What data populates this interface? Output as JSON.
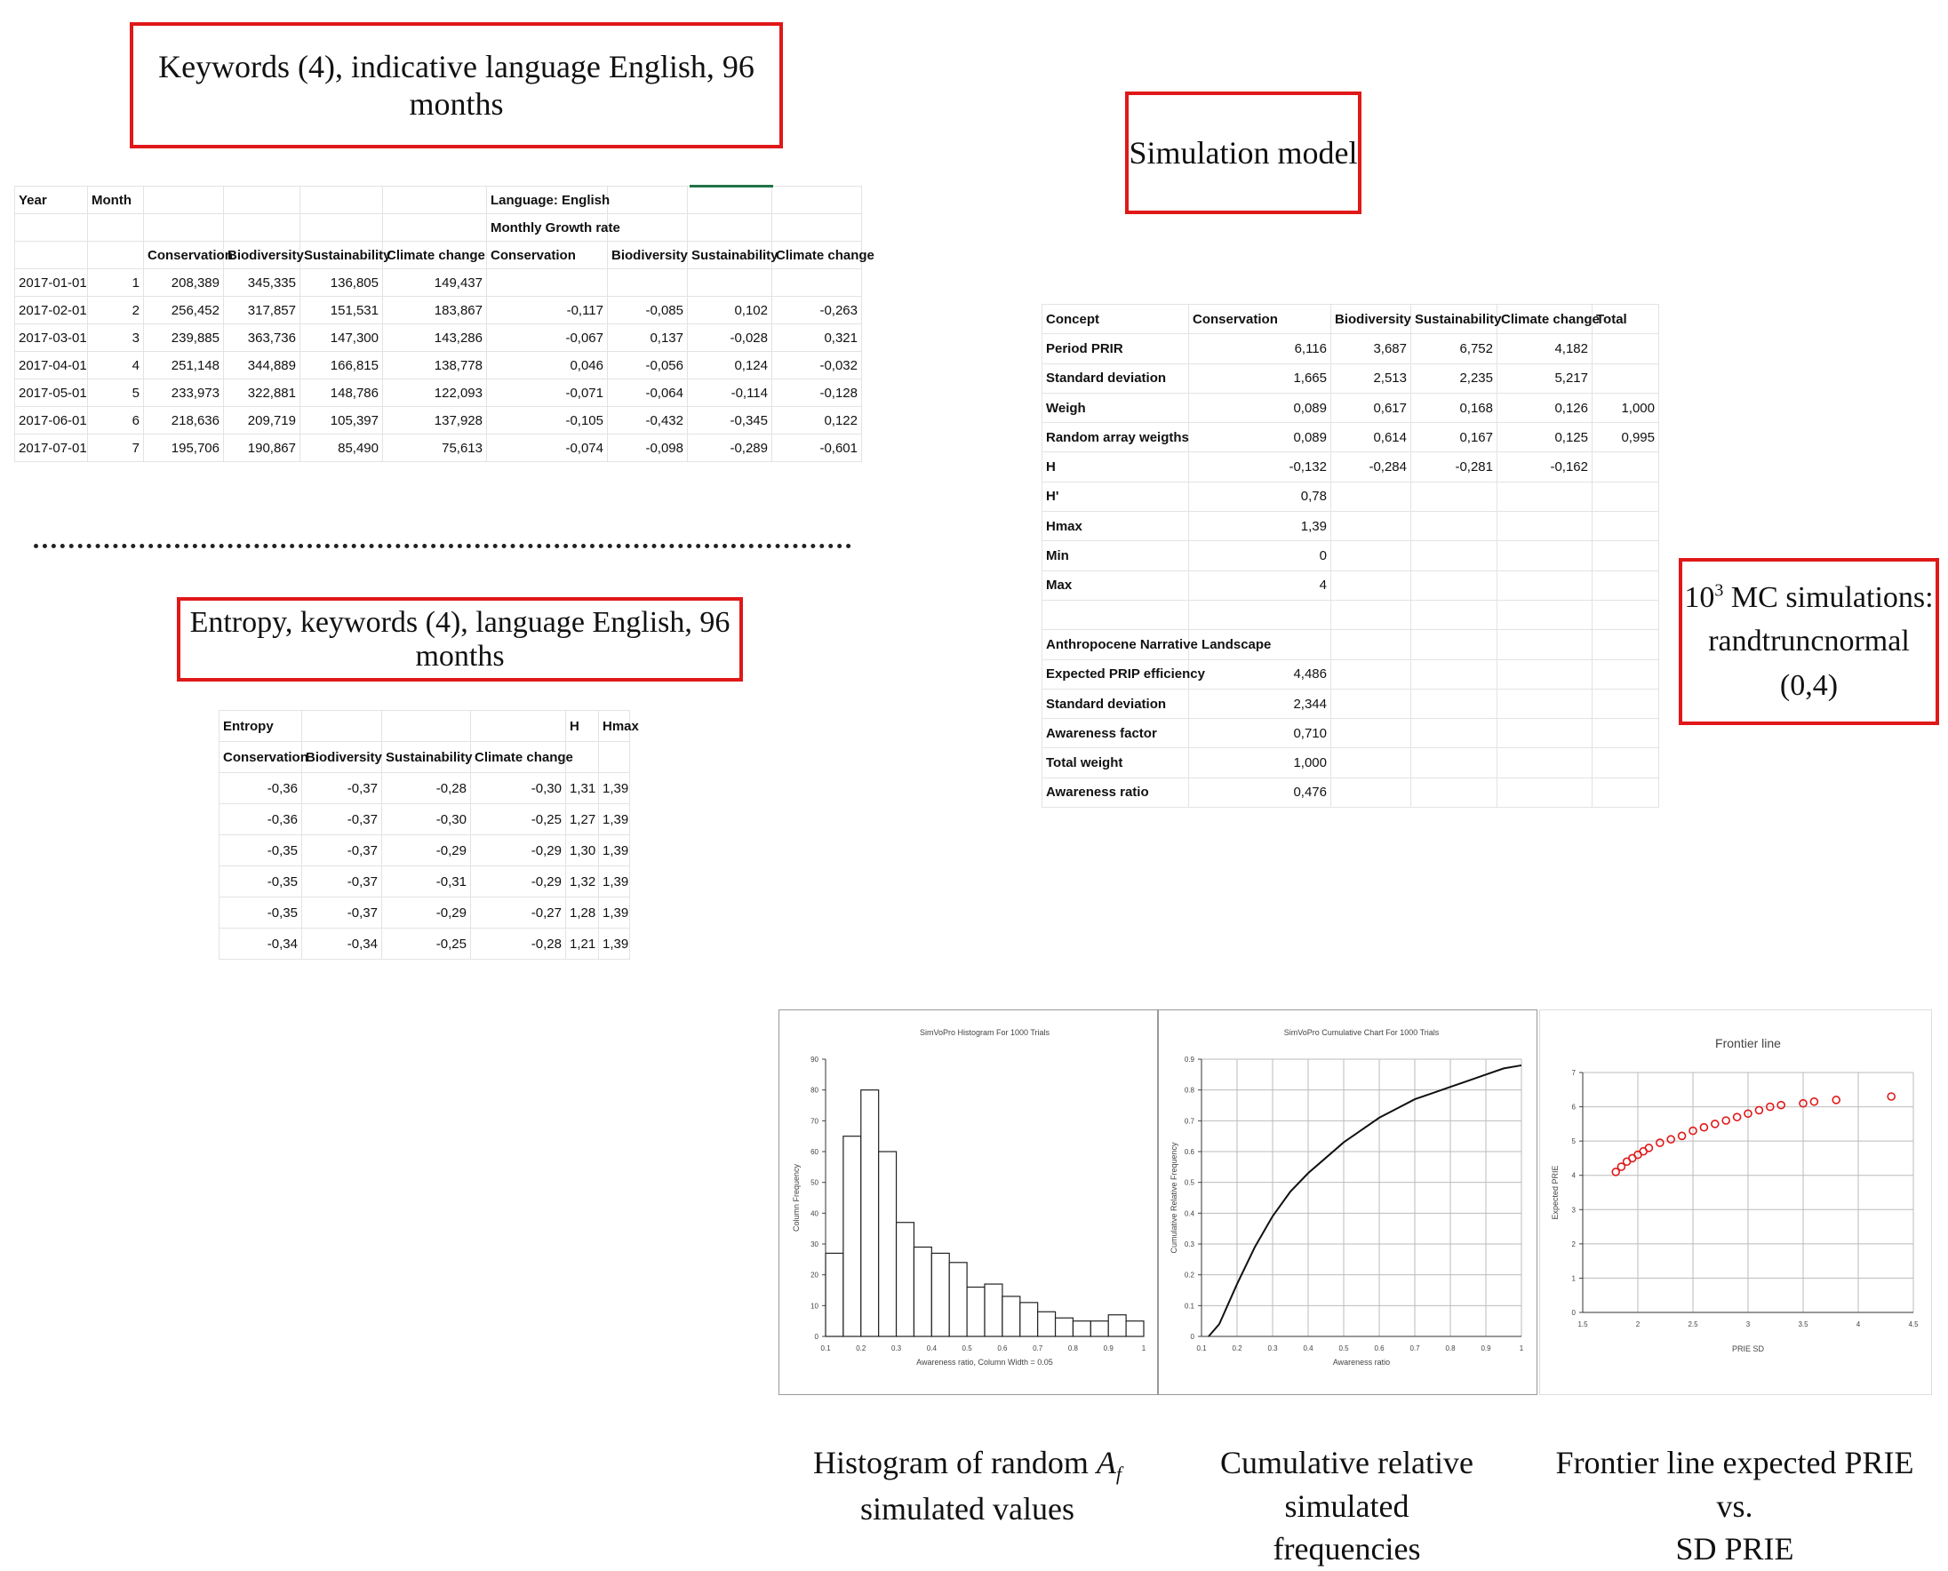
{
  "boxes": {
    "keywords": "Keywords (4), indicative language English, 96 months",
    "simulation": "Simulation model",
    "entropy": "Entropy, keywords (4), language English, 96 months",
    "mc_base": "10",
    "mc_exp": "3",
    "mc_line1": " MC simulations:",
    "mc_line2": "randtruncnormal (0,4)"
  },
  "growth_table": {
    "header1": [
      "Year",
      "Month",
      "",
      "",
      "",
      "",
      "Language: English",
      "",
      "",
      ""
    ],
    "header2": [
      "",
      "",
      "",
      "",
      "",
      "",
      "Monthly Growth rate",
      "",
      "",
      ""
    ],
    "header3": [
      "",
      "",
      "Conservation",
      "Biodiversity",
      "Sustainability",
      "Climate change",
      "Conservation",
      "Biodiversity",
      "Sustainability",
      "Climate change"
    ],
    "rows": [
      [
        "2017-01-01",
        "1",
        "208,389",
        "345,335",
        "136,805",
        "149,437",
        "",
        "",
        "",
        ""
      ],
      [
        "2017-02-01",
        "2",
        "256,452",
        "317,857",
        "151,531",
        "183,867",
        "-0,117",
        "-0,085",
        "0,102",
        "-0,263"
      ],
      [
        "2017-03-01",
        "3",
        "239,885",
        "363,736",
        "147,300",
        "143,286",
        "-0,067",
        "0,137",
        "-0,028",
        "0,321"
      ],
      [
        "2017-04-01",
        "4",
        "251,148",
        "344,889",
        "166,815",
        "138,778",
        "0,046",
        "-0,056",
        "0,124",
        "-0,032"
      ],
      [
        "2017-05-01",
        "5",
        "233,973",
        "322,881",
        "148,786",
        "122,093",
        "-0,071",
        "-0,064",
        "-0,114",
        "-0,128"
      ],
      [
        "2017-06-01",
        "6",
        "218,636",
        "209,719",
        "105,397",
        "137,928",
        "-0,105",
        "-0,432",
        "-0,345",
        "0,122"
      ],
      [
        "2017-07-01",
        "7",
        "195,706",
        "190,867",
        "85,490",
        "75,613",
        "-0,074",
        "-0,098",
        "-0,289",
        "-0,601"
      ]
    ]
  },
  "entropy_table": {
    "header1": [
      "Entropy",
      "",
      "",
      "",
      "H",
      "Hmax"
    ],
    "header2": [
      "Conservation",
      "Biodiversity",
      "Sustainability",
      "Climate change",
      "",
      ""
    ],
    "rows": [
      [
        "-0,36",
        "-0,37",
        "-0,28",
        "-0,30",
        "1,31",
        "1,39"
      ],
      [
        "-0,36",
        "-0,37",
        "-0,30",
        "-0,25",
        "1,27",
        "1,39"
      ],
      [
        "-0,35",
        "-0,37",
        "-0,29",
        "-0,29",
        "1,30",
        "1,39"
      ],
      [
        "-0,35",
        "-0,37",
        "-0,31",
        "-0,29",
        "1,32",
        "1,39"
      ],
      [
        "-0,35",
        "-0,37",
        "-0,29",
        "-0,27",
        "1,28",
        "1,39"
      ],
      [
        "-0,34",
        "-0,34",
        "-0,25",
        "-0,28",
        "1,21",
        "1,39"
      ]
    ]
  },
  "sim_table": {
    "header": [
      "Concept",
      "Conservation",
      "Biodiversity",
      "Sustainability",
      "Climate change",
      "Total"
    ],
    "rows": [
      [
        "Period PRIR",
        "6,116",
        "3,687",
        "6,752",
        "4,182",
        ""
      ],
      [
        "Standard deviation",
        "1,665",
        "2,513",
        "2,235",
        "5,217",
        ""
      ],
      [
        "Weigh",
        "0,089",
        "0,617",
        "0,168",
        "0,126",
        "1,000"
      ],
      [
        "Random array weigths",
        "0,089",
        "0,614",
        "0,167",
        "0,125",
        "0,995"
      ],
      [
        "H",
        "-0,132",
        "-0,284",
        "-0,281",
        "-0,162",
        ""
      ],
      [
        "H'",
        "0,78",
        "",
        "",
        "",
        ""
      ],
      [
        "Hmax",
        "1,39",
        "",
        "",
        "",
        ""
      ],
      [
        "Min",
        "0",
        "",
        "",
        "",
        ""
      ],
      [
        "Max",
        "4",
        "",
        "",
        "",
        ""
      ],
      [
        "",
        "",
        "",
        "",
        "",
        ""
      ],
      [
        "Anthropocene Narrative Landscape",
        "",
        "",
        "",
        "",
        ""
      ],
      [
        "Expected PRIP efficiency",
        "4,486",
        "",
        "",
        "",
        ""
      ],
      [
        "Standard deviation",
        "2,344",
        "",
        "",
        "",
        ""
      ],
      [
        "Awareness factor",
        "0,710",
        "",
        "",
        "",
        ""
      ],
      [
        "Total weight",
        "1,000",
        "",
        "",
        "",
        ""
      ],
      [
        "Awareness ratio",
        "0,476",
        "",
        "",
        "",
        ""
      ]
    ]
  },
  "captions": {
    "hist_1": "Histogram of random ",
    "hist_var": "A",
    "hist_sub": "f",
    "hist_2": "simulated values",
    "cum_1": "Cumulative relative simulated",
    "cum_2": "frequencies",
    "front_1": "Frontier line expected PRIE vs.",
    "front_2": "SD PRIE"
  },
  "colors": {
    "box_border": "#e01818",
    "scatter": "#e01818"
  },
  "chart_data": [
    {
      "type": "bar",
      "title": "SimVoPro Histogram For 1000 Trials",
      "xlabel": "Awareness ratio, Column Width = 0.05",
      "ylabel": "Column Frequency",
      "categories": [
        "0.1",
        "0.15",
        "0.2",
        "0.25",
        "0.3",
        "0.35",
        "0.4",
        "0.45",
        "0.5",
        "0.55",
        "0.6",
        "0.65",
        "0.7",
        "0.75",
        "0.8",
        "0.85",
        "0.9",
        "0.95"
      ],
      "values": [
        27,
        65,
        80,
        60,
        37,
        29,
        27,
        24,
        16,
        17,
        13,
        11,
        8,
        6,
        5,
        5,
        7,
        5
      ],
      "xticks": [
        "0.1",
        "0.2",
        "0.3",
        "0.4",
        "0.5",
        "0.6",
        "0.7",
        "0.8",
        "0.9",
        "1"
      ],
      "yticks": [
        "0",
        "10",
        "20",
        "30",
        "40",
        "50",
        "60",
        "70",
        "80",
        "90"
      ],
      "xlim": [
        0.1,
        1.0
      ],
      "ylim": [
        0,
        90
      ],
      "grid": false
    },
    {
      "type": "line",
      "title": "SimVoPro Cumulative Chart For 1000 Trials",
      "xlabel": "Awareness ratio",
      "ylabel": "Cumulative Relative Frequency",
      "x": [
        0.12,
        0.15,
        0.2,
        0.25,
        0.3,
        0.35,
        0.4,
        0.45,
        0.5,
        0.55,
        0.6,
        0.65,
        0.7,
        0.75,
        0.8,
        0.85,
        0.9,
        0.95,
        1.0
      ],
      "y": [
        0.0,
        0.04,
        0.17,
        0.29,
        0.39,
        0.47,
        0.53,
        0.58,
        0.63,
        0.67,
        0.71,
        0.74,
        0.77,
        0.79,
        0.81,
        0.83,
        0.85,
        0.87,
        0.88
      ],
      "xticks": [
        "0.1",
        "0.2",
        "0.3",
        "0.4",
        "0.5",
        "0.6",
        "0.7",
        "0.8",
        "0.9",
        "1"
      ],
      "yticks": [
        "0",
        "0.1",
        "0.2",
        "0.3",
        "0.4",
        "0.5",
        "0.6",
        "0.7",
        "0.8",
        "0.9"
      ],
      "xlim": [
        0.1,
        1.0
      ],
      "ylim": [
        0,
        0.9
      ],
      "grid": true
    },
    {
      "type": "scatter",
      "title": "Frontier line",
      "xlabel": "PRIE SD",
      "ylabel": "Expected PRIE",
      "x": [
        1.8,
        1.85,
        1.9,
        1.95,
        2.0,
        2.05,
        2.1,
        2.2,
        2.3,
        2.4,
        2.5,
        2.6,
        2.7,
        2.8,
        2.9,
        3.0,
        3.1,
        3.2,
        3.3,
        3.5,
        3.6,
        3.8,
        4.3
      ],
      "y": [
        4.1,
        4.25,
        4.4,
        4.5,
        4.6,
        4.7,
        4.8,
        4.95,
        5.05,
        5.15,
        5.3,
        5.4,
        5.5,
        5.6,
        5.7,
        5.8,
        5.9,
        6.0,
        6.05,
        6.1,
        6.15,
        6.2,
        6.3
      ],
      "xticks": [
        "1.5",
        "2",
        "2.5",
        "3",
        "3.5",
        "4",
        "4.5"
      ],
      "yticks": [
        "0",
        "1",
        "2",
        "3",
        "4",
        "5",
        "6",
        "7"
      ],
      "xlim": [
        1.5,
        4.5
      ],
      "ylim": [
        0,
        7
      ],
      "grid": true
    }
  ]
}
